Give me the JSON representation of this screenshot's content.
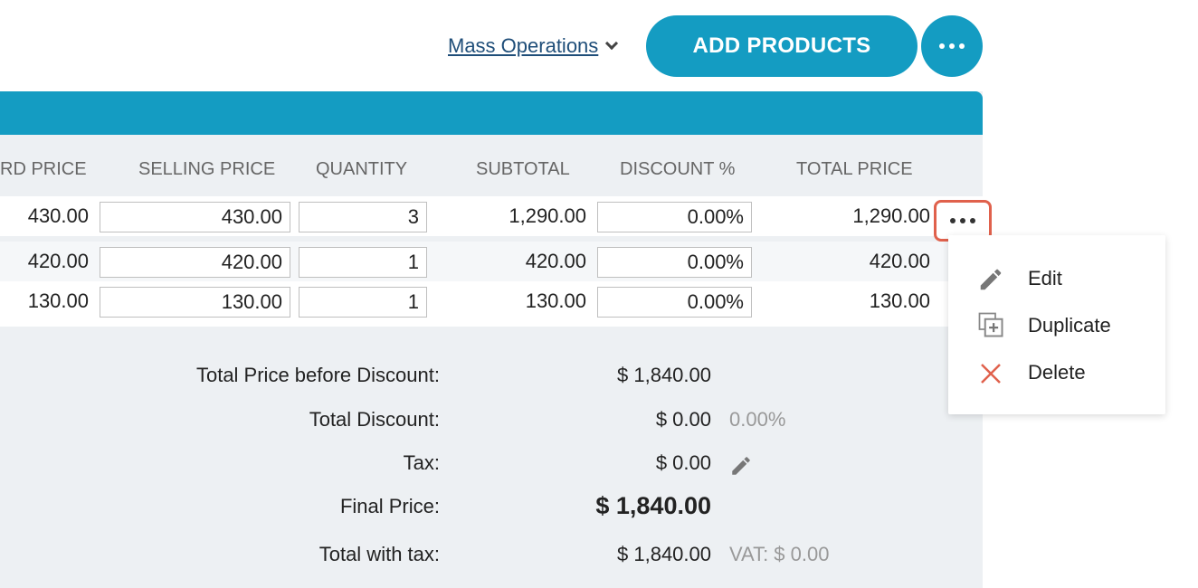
{
  "toolbar": {
    "mass_operations_label": "Mass Operations",
    "add_products_label": "ADD PRODUCTS"
  },
  "columns": {
    "standard_price": "RD PRICE",
    "selling_price": "SELLING PRICE",
    "quantity": "QUANTITY",
    "subtotal": "SUBTOTAL",
    "discount": "DISCOUNT %",
    "total_price": "TOTAL PRICE"
  },
  "rows": [
    {
      "standard_price": "430.00",
      "selling_price": "430.00",
      "quantity": "3",
      "subtotal": "1,290.00",
      "discount": "0.00%",
      "total_price": "1,290.00"
    },
    {
      "standard_price": "420.00",
      "selling_price": "420.00",
      "quantity": "1",
      "subtotal": "420.00",
      "discount": "0.00%",
      "total_price": "420.00"
    },
    {
      "standard_price": "130.00",
      "selling_price": "130.00",
      "quantity": "1",
      "subtotal": "130.00",
      "discount": "0.00%",
      "total_price": "130.00"
    }
  ],
  "row_menu": {
    "edit": "Edit",
    "duplicate": "Duplicate",
    "delete": "Delete"
  },
  "summary": {
    "before_discount_label": "Total Price before Discount:",
    "before_discount_value": "$ 1,840.00",
    "total_discount_label": "Total Discount:",
    "total_discount_value": "$ 0.00",
    "total_discount_pct": "0.00%",
    "tax_label": "Tax:",
    "tax_value": "$ 0.00",
    "final_price_label": "Final Price:",
    "final_price_value": "$ 1,840.00",
    "total_with_tax_label": "Total with tax:",
    "total_with_tax_value": "$ 1,840.00",
    "vat": "VAT: $ 0.00"
  },
  "colors": {
    "accent": "#149cc2",
    "highlight": "#e0614c",
    "delete_icon": "#e0614c"
  },
  "icons": {
    "dropdown": "chevron-down-icon",
    "more": "more-horizontal-icon",
    "edit": "pencil-icon",
    "duplicate": "duplicate-icon",
    "delete": "close-icon"
  }
}
